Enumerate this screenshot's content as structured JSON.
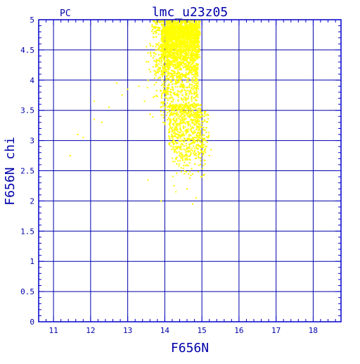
{
  "title": "lmc_u23z05",
  "corner_label": "PC",
  "colors": {
    "axis": "#0000cc",
    "grid": "#0000aa",
    "text": "#0000aa",
    "points": "#ffff00",
    "background": "#ffffff"
  },
  "chart_data": {
    "type": "scatter",
    "title": "lmc_u23z05",
    "xlabel": "F656N",
    "ylabel": "F656N  chi",
    "xlim": [
      10.6,
      18.75
    ],
    "ylim": [
      0,
      5
    ],
    "x_ticks": [
      11,
      12,
      13,
      14,
      15,
      16,
      17,
      18
    ],
    "x_tick_labels": [
      "11",
      "12",
      "13",
      "14",
      "15",
      "16",
      "17",
      "18"
    ],
    "y_ticks": [
      0,
      0.5,
      1,
      1.5,
      2,
      2.5,
      3,
      3.5,
      4,
      4.5,
      5
    ],
    "y_tick_labels": [
      "0",
      "0.5",
      "1",
      "1.5",
      "2",
      "2.5",
      "3",
      "3.5",
      "4",
      "4.5",
      "5"
    ],
    "grid": true,
    "marker_color": "#ffff00",
    "series": [
      {
        "points": [
          [
            11.45,
            2.75
          ],
          [
            11.65,
            3.1
          ],
          [
            11.8,
            3.05
          ],
          [
            12.1,
            3.65
          ],
          [
            12.1,
            3.35
          ],
          [
            12.3,
            3.3
          ],
          [
            12.5,
            3.55
          ],
          [
            12.7,
            3.95
          ],
          [
            12.85,
            3.75
          ],
          [
            13.0,
            3.85
          ],
          [
            13.3,
            3.9
          ],
          [
            13.45,
            3.65
          ],
          [
            13.55,
            2.35
          ],
          [
            13.6,
            4.6
          ],
          [
            13.55,
            4.45
          ],
          [
            13.9,
            2.0
          ],
          [
            14.25,
            2.25
          ],
          [
            14.3,
            2.15
          ],
          [
            14.6,
            2.2
          ],
          [
            14.75,
            1.95
          ],
          [
            14.85,
            2.05
          ],
          [
            15.0,
            2.4
          ],
          [
            15.2,
            2.75
          ],
          [
            15.25,
            2.85
          ],
          [
            15.1,
            3.0
          ]
        ],
        "regions": [
          {
            "x": [
              13.65,
              14.1
            ],
            "y": [
              4.55,
              5.0
            ],
            "n": 120
          },
          {
            "x": [
              13.75,
              14.15
            ],
            "y": [
              4.0,
              4.6
            ],
            "n": 90
          },
          {
            "x": [
              13.9,
              14.9
            ],
            "y": [
              3.2,
              4.9
            ],
            "n": 1600
          },
          {
            "x": [
              14.05,
              14.95
            ],
            "y": [
              4.2,
              5.0
            ],
            "n": 1100
          },
          {
            "x": [
              14.1,
              15.0
            ],
            "y": [
              2.6,
              3.6
            ],
            "n": 500
          },
          {
            "x": [
              14.2,
              15.1
            ],
            "y": [
              2.3,
              3.1
            ],
            "n": 170
          },
          {
            "x": [
              14.8,
              15.2
            ],
            "y": [
              2.7,
              3.5
            ],
            "n": 80
          },
          {
            "x": [
              13.5,
              14.0
            ],
            "y": [
              3.2,
              4.6
            ],
            "n": 60
          }
        ]
      }
    ]
  }
}
